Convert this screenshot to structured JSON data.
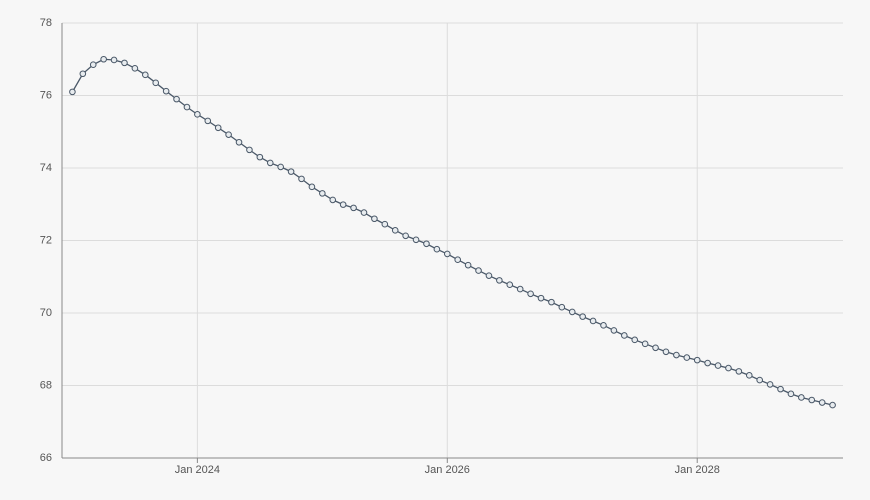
{
  "chart_data": {
    "type": "line",
    "x": [
      "2023-01",
      "2023-02",
      "2023-03",
      "2023-04",
      "2023-05",
      "2023-06",
      "2023-07",
      "2023-08",
      "2023-09",
      "2023-10",
      "2023-11",
      "2023-12",
      "2024-01",
      "2024-02",
      "2024-03",
      "2024-04",
      "2024-05",
      "2024-06",
      "2024-07",
      "2024-08",
      "2024-09",
      "2024-10",
      "2024-11",
      "2024-12",
      "2025-01",
      "2025-02",
      "2025-03",
      "2025-04",
      "2025-05",
      "2025-06",
      "2025-07",
      "2025-08",
      "2025-09",
      "2025-10",
      "2025-11",
      "2025-12",
      "2026-01",
      "2026-02",
      "2026-03",
      "2026-04",
      "2026-05",
      "2026-06",
      "2026-07",
      "2026-08",
      "2026-09",
      "2026-10",
      "2026-11",
      "2026-12",
      "2027-01",
      "2027-02",
      "2027-03",
      "2027-04",
      "2027-05",
      "2027-06",
      "2027-07",
      "2027-08",
      "2027-09",
      "2027-10",
      "2027-11",
      "2027-12",
      "2028-01",
      "2028-02",
      "2028-03",
      "2028-04",
      "2028-05",
      "2028-06",
      "2028-07",
      "2028-08",
      "2028-09",
      "2028-10",
      "2028-11",
      "2028-12",
      "2029-01",
      "2029-02"
    ],
    "series": [
      {
        "color": "#4a5868",
        "values": [
          76.1,
          76.6,
          76.85,
          77.0,
          76.98,
          76.9,
          76.75,
          76.57,
          76.35,
          76.12,
          75.9,
          75.68,
          75.48,
          75.3,
          75.11,
          74.92,
          74.71,
          74.5,
          74.3,
          74.14,
          74.03,
          73.9,
          73.7,
          73.48,
          73.3,
          73.12,
          72.99,
          72.9,
          72.77,
          72.6,
          72.45,
          72.28,
          72.13,
          72.02,
          71.91,
          71.76,
          71.63,
          71.47,
          71.32,
          71.17,
          71.03,
          70.9,
          70.78,
          70.66,
          70.53,
          70.41,
          70.3,
          70.16,
          70.03,
          69.9,
          69.78,
          69.66,
          69.52,
          69.38,
          69.26,
          69.15,
          69.04,
          68.93,
          68.84,
          68.77,
          68.7,
          68.62,
          68.55,
          68.48,
          68.39,
          68.28,
          68.15,
          68.03,
          67.9,
          67.77,
          67.67,
          67.6,
          67.53,
          67.46
        ]
      }
    ],
    "xlim": [
      "2022-12",
      "2029-03"
    ],
    "xticks": [
      {
        "value": "2024-01",
        "label": "Jan 2024"
      },
      {
        "value": "2026-01",
        "label": "Jan 2026"
      },
      {
        "value": "2028-01",
        "label": "Jan 2028"
      }
    ],
    "ylim": [
      66,
      78
    ],
    "yticks": [
      66,
      68,
      70,
      72,
      74,
      76,
      78
    ],
    "grid": true
  }
}
